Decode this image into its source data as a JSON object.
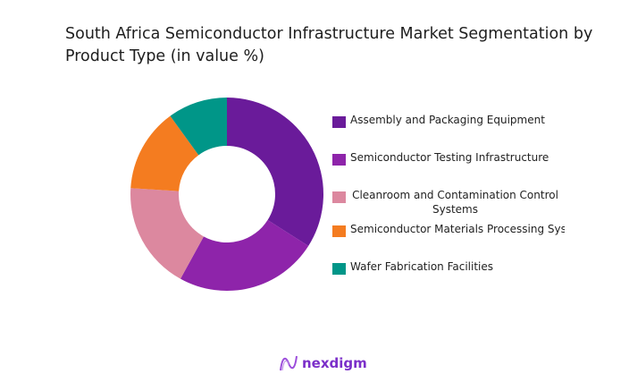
{
  "chart_data": {
    "type": "pie",
    "donut": true,
    "title": "South Africa Semiconductor Infrastructure Market Segmentation by Product Type (in value %)",
    "categories": [
      "Assembly and Packaging Equipment",
      "Semiconductor Testing Infrastructure",
      "Cleanroom and Contamination Control Systems",
      "Semiconductor Materials Processing Systems",
      "Wafer Fabrication Facilities"
    ],
    "legend_labels": [
      "Assembly and Packaging Equipment",
      "Semiconductor Testing Infrastructure",
      "Cleanroom and Contamination Control Systems",
      "Semiconductor Materials Processing Syste",
      "Wafer Fabrication Facilities"
    ],
    "values": [
      34,
      24,
      18,
      14,
      10
    ],
    "colors": [
      "#6a1b9a",
      "#8e24aa",
      "#dc889f",
      "#f47c20",
      "#009688"
    ],
    "legend_position": "right"
  },
  "brand": {
    "name": "nexdigm",
    "color": "#7b2fc9"
  }
}
